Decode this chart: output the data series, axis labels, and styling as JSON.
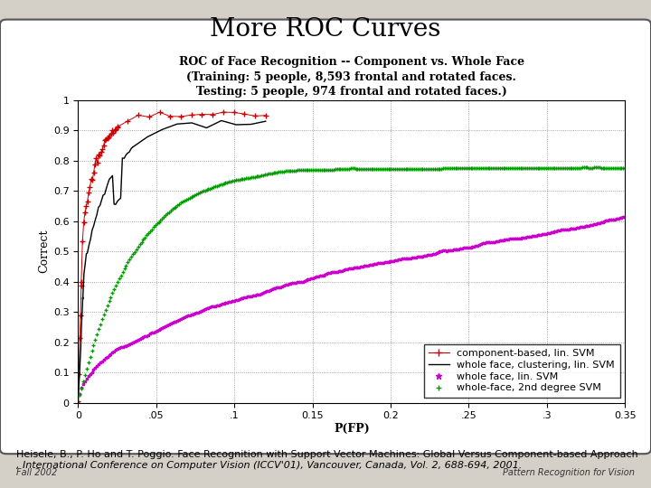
{
  "title": "More ROC Curves",
  "chart_title_line1": "ROC of Face Recognition -- Component vs. Whole Face",
  "chart_title_line2": "(Training: 5 people, 8,593 frontal and rotated faces.",
  "chart_title_line3": "Testing: 5 people, 974 frontal and rotated faces.)",
  "xlabel": "P(FP)",
  "ylabel": "Correct",
  "xlim": [
    0,
    0.35
  ],
  "ylim": [
    0,
    1.0
  ],
  "xticks": [
    0,
    0.05,
    0.1,
    0.15,
    0.2,
    0.25,
    0.3,
    0.35
  ],
  "xtick_labels": [
    "0",
    ".05",
    ".1",
    "0.15",
    "0.2",
    ".25",
    ".3",
    "0.35"
  ],
  "yticks": [
    0,
    0.1,
    0.2,
    0.3,
    0.4,
    0.5,
    0.6,
    0.7,
    0.8,
    0.9,
    1
  ],
  "ytick_labels": [
    "0",
    "0.1",
    "0.2",
    "0.3",
    "0.4",
    "0.5",
    "0.6",
    "0.7",
    "0.8",
    "0.9",
    "1"
  ],
  "legend_labels": [
    "component-based, lin. SVM",
    "whole face, clustering, lin. SVM",
    "whole face, lin. SVM",
    "whole-face, 2nd degree SVM"
  ],
  "curve_colors": [
    "#cc0000",
    "#000000",
    "#cc00cc",
    "#009900"
  ],
  "citation_normal": "Heisele, B., P. Ho and T. Poggio. ",
  "citation_link": "Face Recognition with Support Vector Machines: Global Versus Component-based Approach",
  "citation_rest": ", ",
  "citation_italic": "International Conference on Computer Vision (ICCV'01)",
  "citation_end": ", Vancouver, Canada, Vol. 2, 688-694, 2001.",
  "footer_left": "Fall 2002",
  "footer_right": "Pattern Recognition for Vision",
  "bg_color": "#d4d0c8",
  "slide_bg": "#ffffff",
  "title_fontsize": 20,
  "chart_title_fontsize": 9,
  "axis_label_fontsize": 9,
  "tick_fontsize": 8,
  "legend_fontsize": 8,
  "citation_fontsize": 8,
  "footer_fontsize": 7
}
